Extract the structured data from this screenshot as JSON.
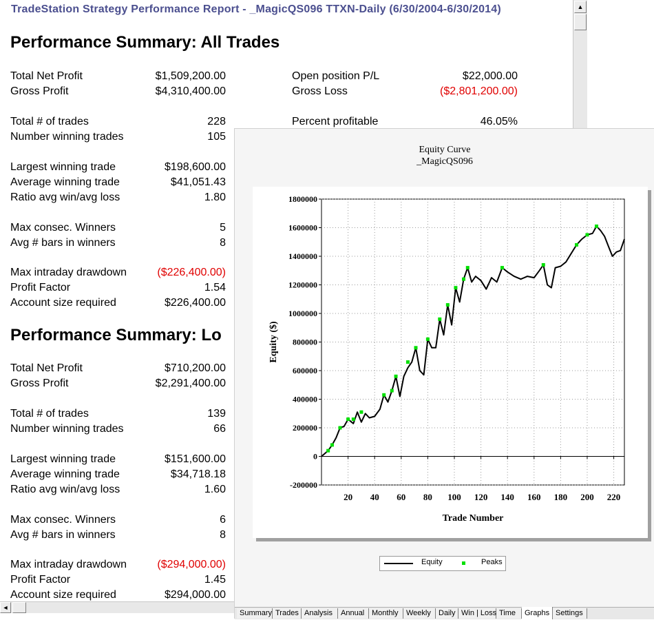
{
  "window": {
    "title": "TradeStation  Strategy Performance Report - _MagicQS096 TTXN-Daily (6/30/2004-6/30/2014)"
  },
  "scrollbars": {
    "up_arrow": "▲",
    "left_arrow": "◄"
  },
  "all_trades": {
    "title": "Performance Summary:  All Trades",
    "left": [
      {
        "label": "Total Net Profit",
        "value": "$1,509,200.00"
      },
      {
        "label": "Gross Profit",
        "value": "$4,310,400.00"
      },
      {
        "label": "Total # of trades",
        "value": "228"
      },
      {
        "label": "Number winning trades",
        "value": "105"
      },
      {
        "label": "Largest winning trade",
        "value": "$198,600.00"
      },
      {
        "label": "Average winning trade",
        "value": "$41,051.43"
      },
      {
        "label": "Ratio avg win/avg loss",
        "value": "1.80"
      },
      {
        "label": "Max consec. Winners",
        "value": "5"
      },
      {
        "label": "Avg # bars in winners",
        "value": "8"
      },
      {
        "label": "Max intraday drawdown",
        "value": "($226,400.00)"
      },
      {
        "label": "Profit Factor",
        "value": "1.54"
      },
      {
        "label": "Account size required",
        "value": "$226,400.00"
      }
    ],
    "right": [
      {
        "label": "Open position P/L",
        "value": "$22,000.00"
      },
      {
        "label": "Gross Loss",
        "value": "($2,801,200.00)"
      },
      {
        "label": "Percent profitable",
        "value": "46.05%"
      }
    ]
  },
  "long_trades": {
    "title": "Performance Summary:  Lo",
    "left": [
      {
        "label": "Total Net Profit",
        "value": "$710,200.00"
      },
      {
        "label": "Gross Profit",
        "value": "$2,291,400.00"
      },
      {
        "label": "Total # of trades",
        "value": "139"
      },
      {
        "label": "Number winning trades",
        "value": "66"
      },
      {
        "label": "Largest winning trade",
        "value": "$151,600.00"
      },
      {
        "label": "Average winning trade",
        "value": "$34,718.18"
      },
      {
        "label": "Ratio avg win/avg loss",
        "value": "1.60"
      },
      {
        "label": "Max consec. Winners",
        "value": "6"
      },
      {
        "label": "Avg # bars in winners",
        "value": "8"
      },
      {
        "label": "Max intraday drawdown",
        "value": "($294,000.00)"
      },
      {
        "label": "Profit Factor",
        "value": "1.45"
      },
      {
        "label": "Account size required",
        "value": "$294,000.00"
      }
    ]
  },
  "chart_data": {
    "type": "line",
    "title": "Equity Curve",
    "subtitle": "_MagicQS096",
    "xlabel": "Trade Number",
    "ylabel": "Equity ($)",
    "xlim": [
      0,
      228
    ],
    "ylim": [
      -200000,
      1800000
    ],
    "x_ticks": [
      20,
      40,
      60,
      80,
      100,
      120,
      140,
      160,
      180,
      200,
      220
    ],
    "y_ticks": [
      -200000,
      0,
      200000,
      400000,
      600000,
      800000,
      1000000,
      1200000,
      1400000,
      1600000,
      1800000
    ],
    "grid": true,
    "legend_position": "bottom",
    "series": [
      {
        "name": "Equity",
        "color": "#000000",
        "x": [
          0,
          5,
          8,
          11,
          14,
          17,
          20,
          24,
          27,
          30,
          33,
          36,
          40,
          44,
          47,
          50,
          53,
          56,
          59,
          62,
          65,
          68,
          71,
          74,
          77,
          80,
          83,
          86,
          89,
          92,
          95,
          98,
          101,
          104,
          107,
          110,
          113,
          116,
          120,
          124,
          128,
          132,
          136,
          140,
          145,
          150,
          155,
          160,
          164,
          167,
          170,
          173,
          176,
          180,
          184,
          188,
          192,
          196,
          200,
          204,
          207,
          210,
          213,
          216,
          219,
          222,
          225,
          228
        ],
        "y": [
          0,
          40000,
          80000,
          130000,
          200000,
          210000,
          260000,
          230000,
          310000,
          240000,
          300000,
          270000,
          280000,
          330000,
          430000,
          380000,
          460000,
          560000,
          420000,
          560000,
          620000,
          660000,
          760000,
          600000,
          570000,
          820000,
          760000,
          760000,
          960000,
          850000,
          1060000,
          920000,
          1180000,
          1080000,
          1240000,
          1320000,
          1220000,
          1260000,
          1230000,
          1170000,
          1250000,
          1220000,
          1320000,
          1290000,
          1260000,
          1240000,
          1260000,
          1250000,
          1300000,
          1340000,
          1200000,
          1180000,
          1320000,
          1330000,
          1360000,
          1420000,
          1480000,
          1520000,
          1550000,
          1560000,
          1610000,
          1580000,
          1540000,
          1470000,
          1400000,
          1430000,
          1440000,
          1520000
        ]
      },
      {
        "name": "Peaks",
        "color": "#00e000",
        "x": [
          5,
          8,
          14,
          20,
          24,
          30,
          47,
          53,
          56,
          65,
          71,
          80,
          89,
          95,
          101,
          107,
          110,
          136,
          167,
          192,
          200,
          207
        ],
        "y": [
          40000,
          80000,
          200000,
          260000,
          260000,
          310000,
          430000,
          460000,
          560000,
          660000,
          760000,
          820000,
          960000,
          1060000,
          1180000,
          1240000,
          1320000,
          1320000,
          1340000,
          1480000,
          1550000,
          1610000
        ]
      }
    ]
  },
  "legend": {
    "equity_label": "Equity",
    "peaks_label": "Peaks"
  },
  "tabs": [
    "Summary",
    "Trades",
    "Analysis",
    "Annual",
    "Monthly",
    "Weekly",
    "Daily",
    "Win | Loss",
    "Time",
    "Graphs",
    "Settings"
  ],
  "active_tab": "Graphs"
}
